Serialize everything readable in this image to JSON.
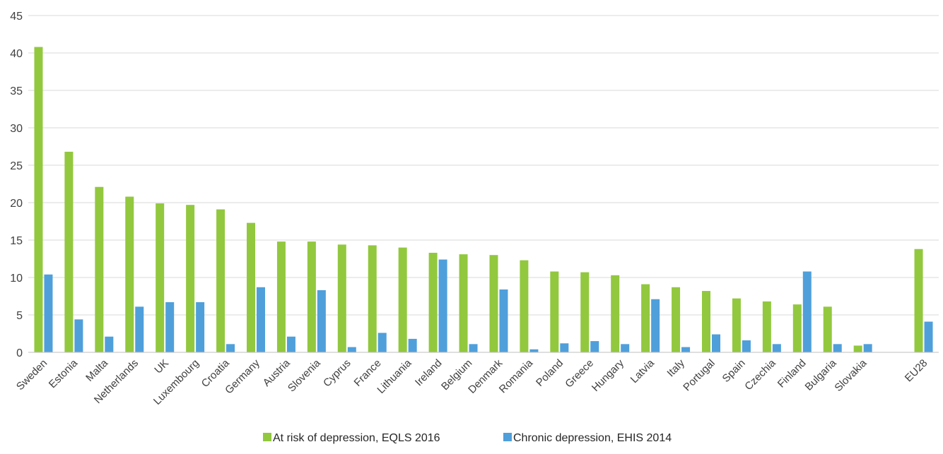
{
  "chart_data": {
    "type": "bar",
    "categories": [
      "Sweden",
      "Estonia",
      "Malta",
      "Netherlands",
      "UK",
      "Luxembourg",
      "Croatia",
      "Germany",
      "Austria",
      "Slovenia",
      "Cyprus",
      "France",
      "Lithuania",
      "Ireland",
      "Belgium",
      "Denmark",
      "Romania",
      "Poland",
      "Greece",
      "Hungary",
      "Latvia",
      "Italy",
      "Portugal",
      "Spain",
      "Czechia",
      "Finland",
      "Bulgaria",
      "Slovakia",
      "EU28"
    ],
    "series": [
      {
        "name": "At risk of depression, EQLS 2016",
        "color": "#92c83e",
        "values": [
          40.8,
          26.8,
          22.1,
          20.8,
          19.9,
          19.7,
          19.1,
          17.3,
          14.8,
          14.8,
          14.4,
          14.3,
          14.0,
          13.3,
          13.1,
          13.0,
          12.3,
          10.8,
          10.7,
          10.3,
          9.1,
          8.7,
          8.2,
          7.2,
          6.8,
          6.4,
          6.1,
          0.9,
          13.8
        ]
      },
      {
        "name": "Chronic depression, EHIS 2014",
        "color": "#4f9fdb",
        "values": [
          10.4,
          4.4,
          2.1,
          6.1,
          6.7,
          6.7,
          1.1,
          8.7,
          2.1,
          8.3,
          0.7,
          2.6,
          1.8,
          12.4,
          1.1,
          8.4,
          0.4,
          1.2,
          1.5,
          1.1,
          7.1,
          0.7,
          2.4,
          1.6,
          1.1,
          10.8,
          1.1,
          1.1,
          4.1
        ]
      }
    ],
    "yticks": [
      "0",
      "5",
      "10",
      "15",
      "20",
      "25",
      "30",
      "35",
      "40",
      "45"
    ],
    "ylim": [
      0,
      45
    ],
    "grid": true,
    "legend_position": "bottom-center"
  }
}
